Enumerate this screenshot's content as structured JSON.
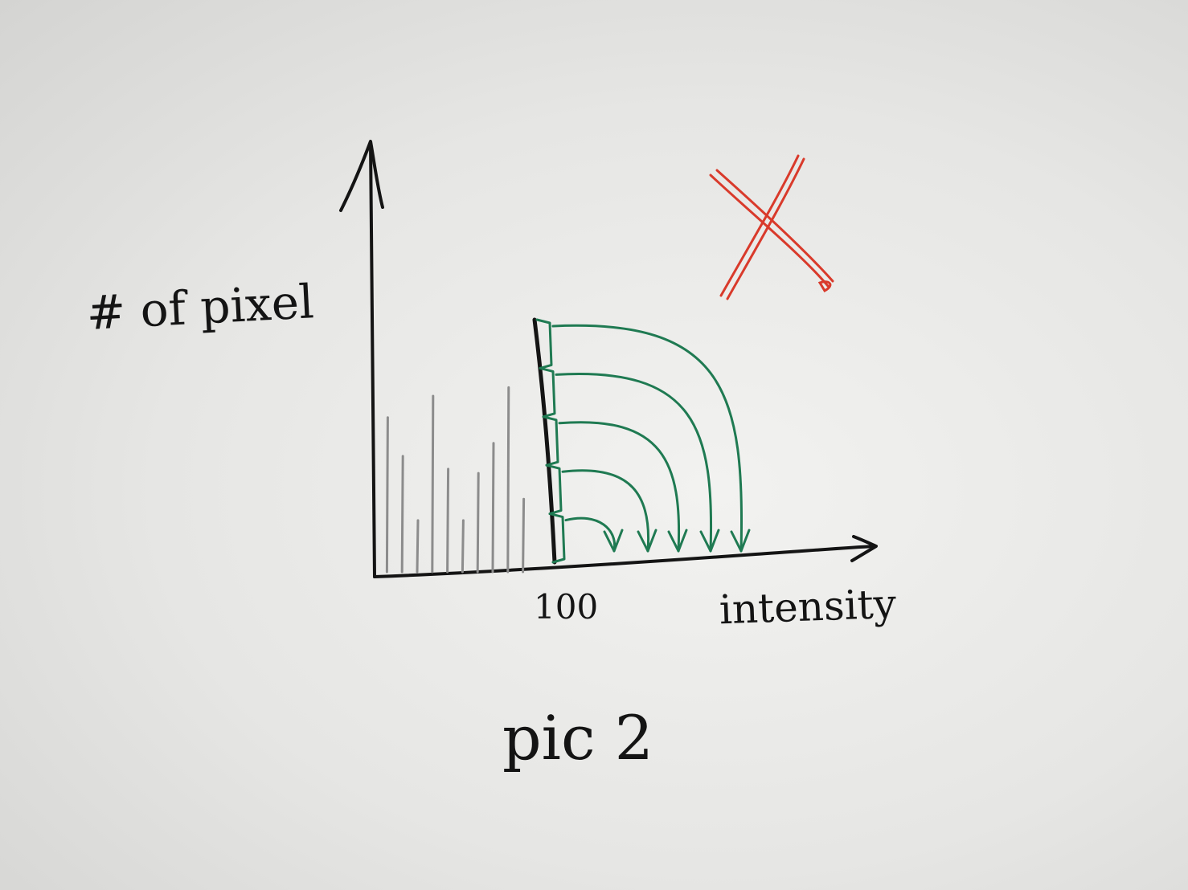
{
  "diagram": {
    "ylabel": "# of pixel",
    "xlabel": "intensity",
    "tick_label": "100",
    "caption": "pic 2",
    "mark": "cross-mark",
    "colors": {
      "ink": "#141414",
      "pencil": "#8c8c8c",
      "arrows": "#1f7a52",
      "cross": "#d93a2b",
      "paper": "#e8e8e6"
    },
    "histogram_heights": [
      0.36,
      0.27,
      0.12,
      0.41,
      0.24,
      0.12,
      0.23,
      0.3,
      0.43,
      0.17
    ],
    "remap_steps": 5
  }
}
